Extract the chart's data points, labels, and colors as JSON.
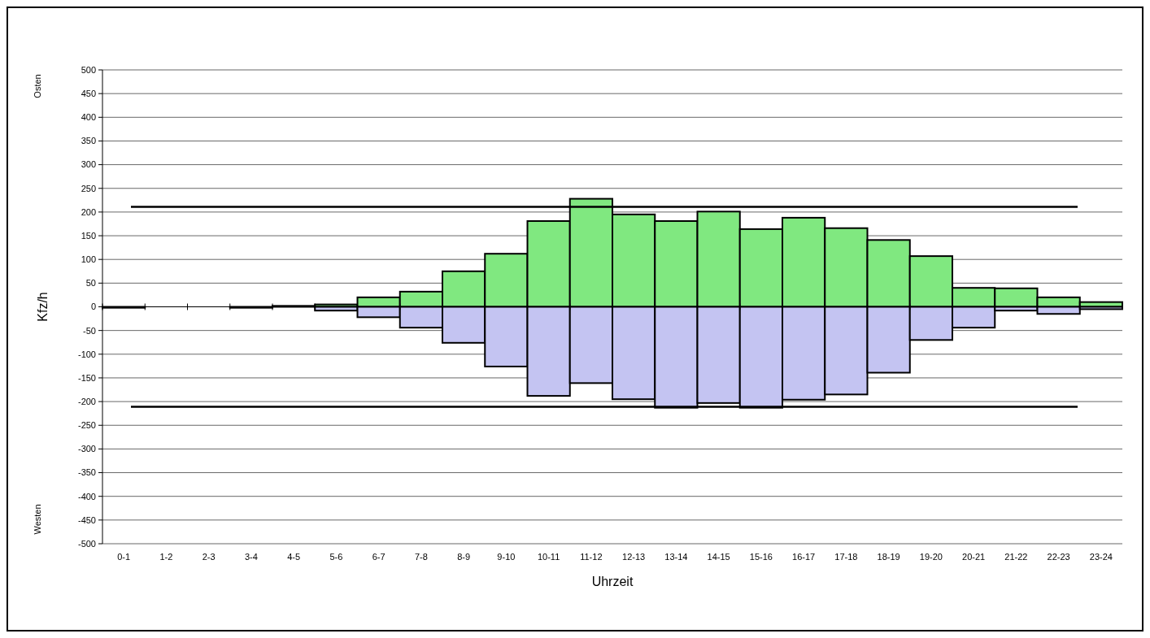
{
  "chart_data": {
    "type": "bar",
    "stacked": true,
    "xlabel": "Uhrzeit",
    "ylabel": "Kfz/h",
    "categories": [
      "0-1",
      "1-2",
      "2-3",
      "3-4",
      "4-5",
      "5-6",
      "6-7",
      "7-8",
      "8-9",
      "9-10",
      "10-11",
      "11-12",
      "12-13",
      "13-14",
      "14-15",
      "15-16",
      "16-17",
      "17-18",
      "18-19",
      "19-20",
      "20-21",
      "21-22",
      "22-23",
      "23-24"
    ],
    "series": [
      {
        "color": "#80e880",
        "values": [
          null,
          null,
          null,
          null,
          2,
          5,
          20,
          32,
          75,
          112,
          181,
          228,
          195,
          181,
          201,
          164,
          188,
          166,
          141,
          107,
          40,
          39,
          20,
          10
        ]
      },
      {
        "color": "#c4c4f2",
        "values": [
          -2,
          null,
          null,
          -2,
          null,
          -8,
          -22,
          -44,
          -76,
          -126,
          -188,
          -161,
          -195,
          -213,
          -203,
          -213,
          -196,
          -185,
          -139,
          -70,
          -44,
          -8,
          -15,
          -5
        ]
      }
    ],
    "ylim": [
      -500,
      500
    ],
    "yticks": [
      -500,
      -450,
      -400,
      -350,
      -300,
      -250,
      -200,
      -150,
      -100,
      -50,
      0,
      50,
      100,
      150,
      200,
      250,
      300,
      350,
      400,
      450,
      500
    ],
    "grid": "y",
    "ref_lines": [
      {
        "axis": "y",
        "value": 211,
        "color": "#000000"
      },
      {
        "axis": "y",
        "value": -211,
        "color": "#000000"
      }
    ],
    "annotations": [
      "Osten",
      "Westen"
    ]
  }
}
